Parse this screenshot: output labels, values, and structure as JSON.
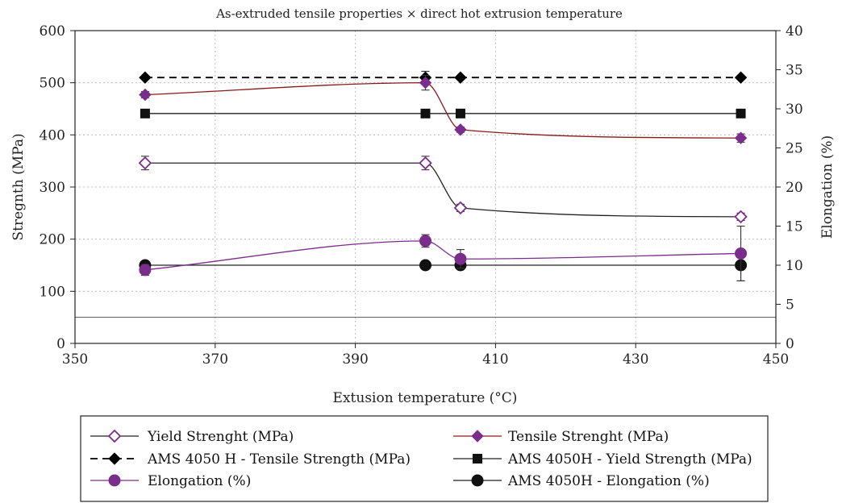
{
  "chart_data": {
    "type": "line",
    "title": "As-extruded tensile properties × direct hot extrusion temperature",
    "xlabel": "Extusion temperature (°C)",
    "ylabel": "Stregnth (MPa)",
    "y2label": "Elongation (%)",
    "xlim": [
      350,
      450
    ],
    "ylim": [
      0,
      600
    ],
    "y2lim": [
      0,
      40
    ],
    "x_ticks": [
      "350",
      "370",
      "390",
      "410",
      "430",
      "450"
    ],
    "y_ticks": [
      "0",
      "100",
      "200",
      "300",
      "400",
      "500",
      "600"
    ],
    "y2_ticks": [
      "0",
      "5",
      "10",
      "15",
      "20",
      "25",
      "30",
      "35",
      "40"
    ],
    "grid": true,
    "legend_position": "bottom",
    "reference_line_y": 50,
    "series": [
      {
        "name": "Yield Strenght (MPa)",
        "axis": "left",
        "color": "#222222",
        "marker": "diamond-open",
        "marker_color": "#7B2D8B",
        "line_style": "solid",
        "x": [
          360,
          400,
          405,
          445
        ],
        "values": [
          346,
          346,
          260,
          243
        ],
        "error": [
          13,
          13,
          7,
          7
        ]
      },
      {
        "name": "Tensile Strenght (MPa)",
        "axis": "left",
        "color": "#8B1A1A",
        "marker": "diamond",
        "marker_color": "#7B2D8B",
        "line_style": "solid",
        "x": [
          360,
          400,
          405,
          445
        ],
        "values": [
          477,
          500,
          410,
          394
        ],
        "error": [
          6,
          14,
          5,
          8
        ]
      },
      {
        "name": "AMS 4050 H - Tensile Strength (MPa)",
        "axis": "left",
        "color": "#000000",
        "marker": "diamond",
        "marker_color": "#000000",
        "line_style": "dashed",
        "x": [
          360,
          400,
          405,
          445
        ],
        "values": [
          510,
          510,
          510,
          510
        ],
        "error": [
          0,
          12,
          0,
          0
        ]
      },
      {
        "name": "AMS 4050H - Yield Strength (MPa)",
        "axis": "left",
        "color": "#222222",
        "marker": "square",
        "marker_color": "#111111",
        "line_style": "solid",
        "x": [
          360,
          400,
          405,
          445
        ],
        "values": [
          441,
          441,
          441,
          441
        ],
        "error": [
          0,
          0,
          0,
          0
        ]
      },
      {
        "name": "Elongation (%)",
        "axis": "right",
        "color": "#7B2D8B",
        "marker": "circle",
        "marker_color": "#7B2D8B",
        "line_style": "solid",
        "x": [
          360,
          400,
          405,
          445
        ],
        "values": [
          9.4,
          13.1,
          10.8,
          11.5
        ],
        "error": [
          0.7,
          0.8,
          1.2,
          3.5
        ]
      },
      {
        "name": "AMS 4050H - Elongation (%)",
        "axis": "right",
        "color": "#222222",
        "marker": "circle",
        "marker_color": "#111111",
        "line_style": "solid",
        "x": [
          360,
          400,
          405,
          445
        ],
        "values": [
          10,
          10,
          10,
          10
        ],
        "error": [
          0,
          0,
          0,
          2
        ]
      }
    ],
    "legend_order": [
      0,
      1,
      2,
      3,
      4,
      5
    ]
  }
}
